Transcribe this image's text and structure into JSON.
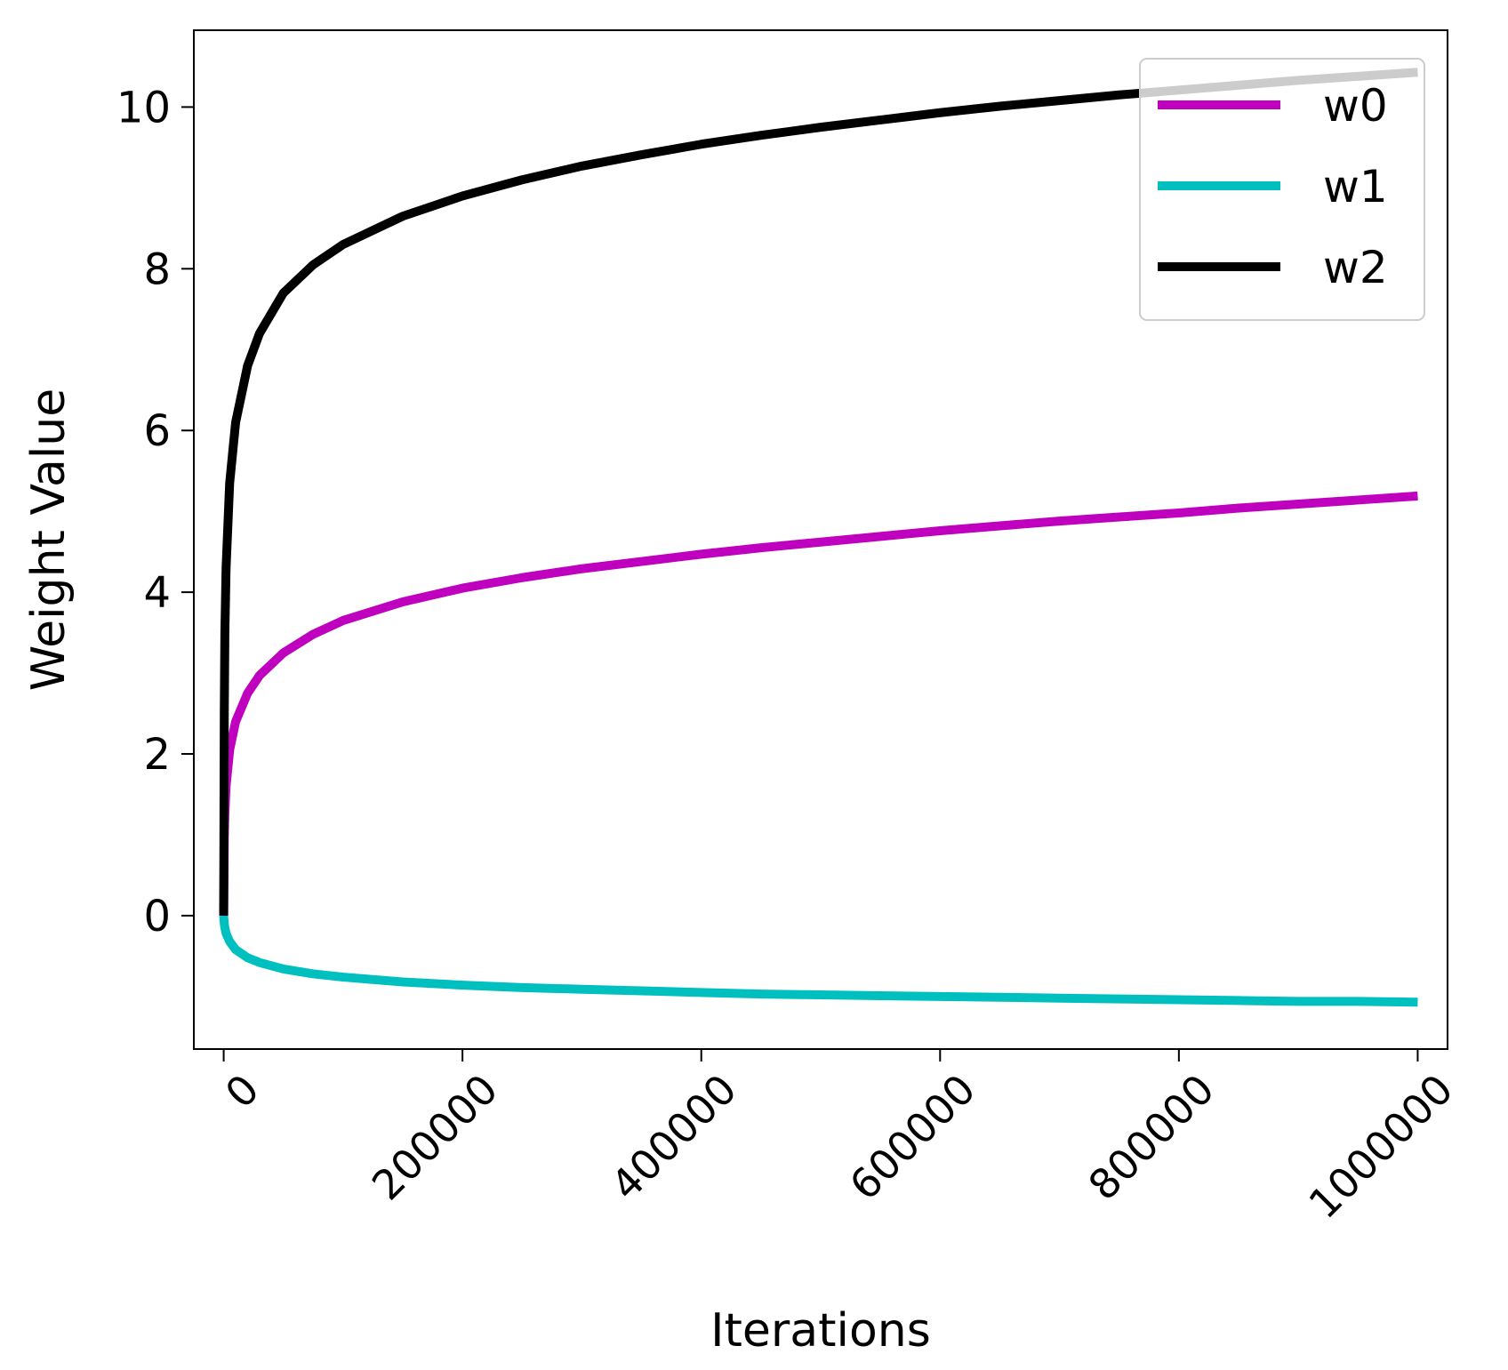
{
  "chart_data": {
    "type": "line",
    "title": "",
    "xlabel": "Iterations",
    "ylabel": "Weight Value",
    "xlim": [
      -25000,
      1025000
    ],
    "ylim": [
      -1.65,
      10.95
    ],
    "xticks": [
      0,
      200000,
      400000,
      600000,
      800000,
      1000000
    ],
    "xtick_labels": [
      "0",
      "200000",
      "400000",
      "600000",
      "800000",
      "1000000"
    ],
    "xtick_rotation": 45,
    "yticks": [
      0,
      2,
      4,
      6,
      8,
      10
    ],
    "ytick_labels": [
      "0",
      "2",
      "4",
      "6",
      "8",
      "10"
    ],
    "grid": false,
    "legend_position": "top-right",
    "x": [
      0,
      500,
      1000,
      2000,
      5000,
      10000,
      20000,
      30000,
      50000,
      75000,
      100000,
      150000,
      200000,
      250000,
      300000,
      350000,
      400000,
      450000,
      500000,
      550000,
      600000,
      650000,
      700000,
      750000,
      800000,
      850000,
      900000,
      950000,
      1000000
    ],
    "series": [
      {
        "name": "w0",
        "color": "#bf00bf",
        "values": [
          0.0,
          0.95,
          1.25,
          1.6,
          2.05,
          2.4,
          2.75,
          2.97,
          3.25,
          3.48,
          3.65,
          3.88,
          4.05,
          4.18,
          4.29,
          4.38,
          4.47,
          4.55,
          4.62,
          4.69,
          4.76,
          4.82,
          4.88,
          4.93,
          4.98,
          5.04,
          5.09,
          5.14,
          5.19
        ]
      },
      {
        "name": "w1",
        "color": "#00bfbf",
        "values": [
          0.0,
          -0.1,
          -0.15,
          -0.22,
          -0.32,
          -0.42,
          -0.52,
          -0.58,
          -0.66,
          -0.72,
          -0.76,
          -0.82,
          -0.86,
          -0.89,
          -0.91,
          -0.93,
          -0.95,
          -0.97,
          -0.98,
          -0.99,
          -1.0,
          -1.01,
          -1.02,
          -1.03,
          -1.04,
          -1.05,
          -1.06,
          -1.06,
          -1.07
        ]
      },
      {
        "name": "w2",
        "color": "#000000",
        "values": [
          0.0,
          2.5,
          3.5,
          4.3,
          5.35,
          6.1,
          6.8,
          7.2,
          7.7,
          8.05,
          8.3,
          8.65,
          8.9,
          9.1,
          9.27,
          9.41,
          9.54,
          9.65,
          9.75,
          9.84,
          9.93,
          10.01,
          10.08,
          10.15,
          10.21,
          10.27,
          10.33,
          10.38,
          10.43
        ]
      }
    ]
  }
}
